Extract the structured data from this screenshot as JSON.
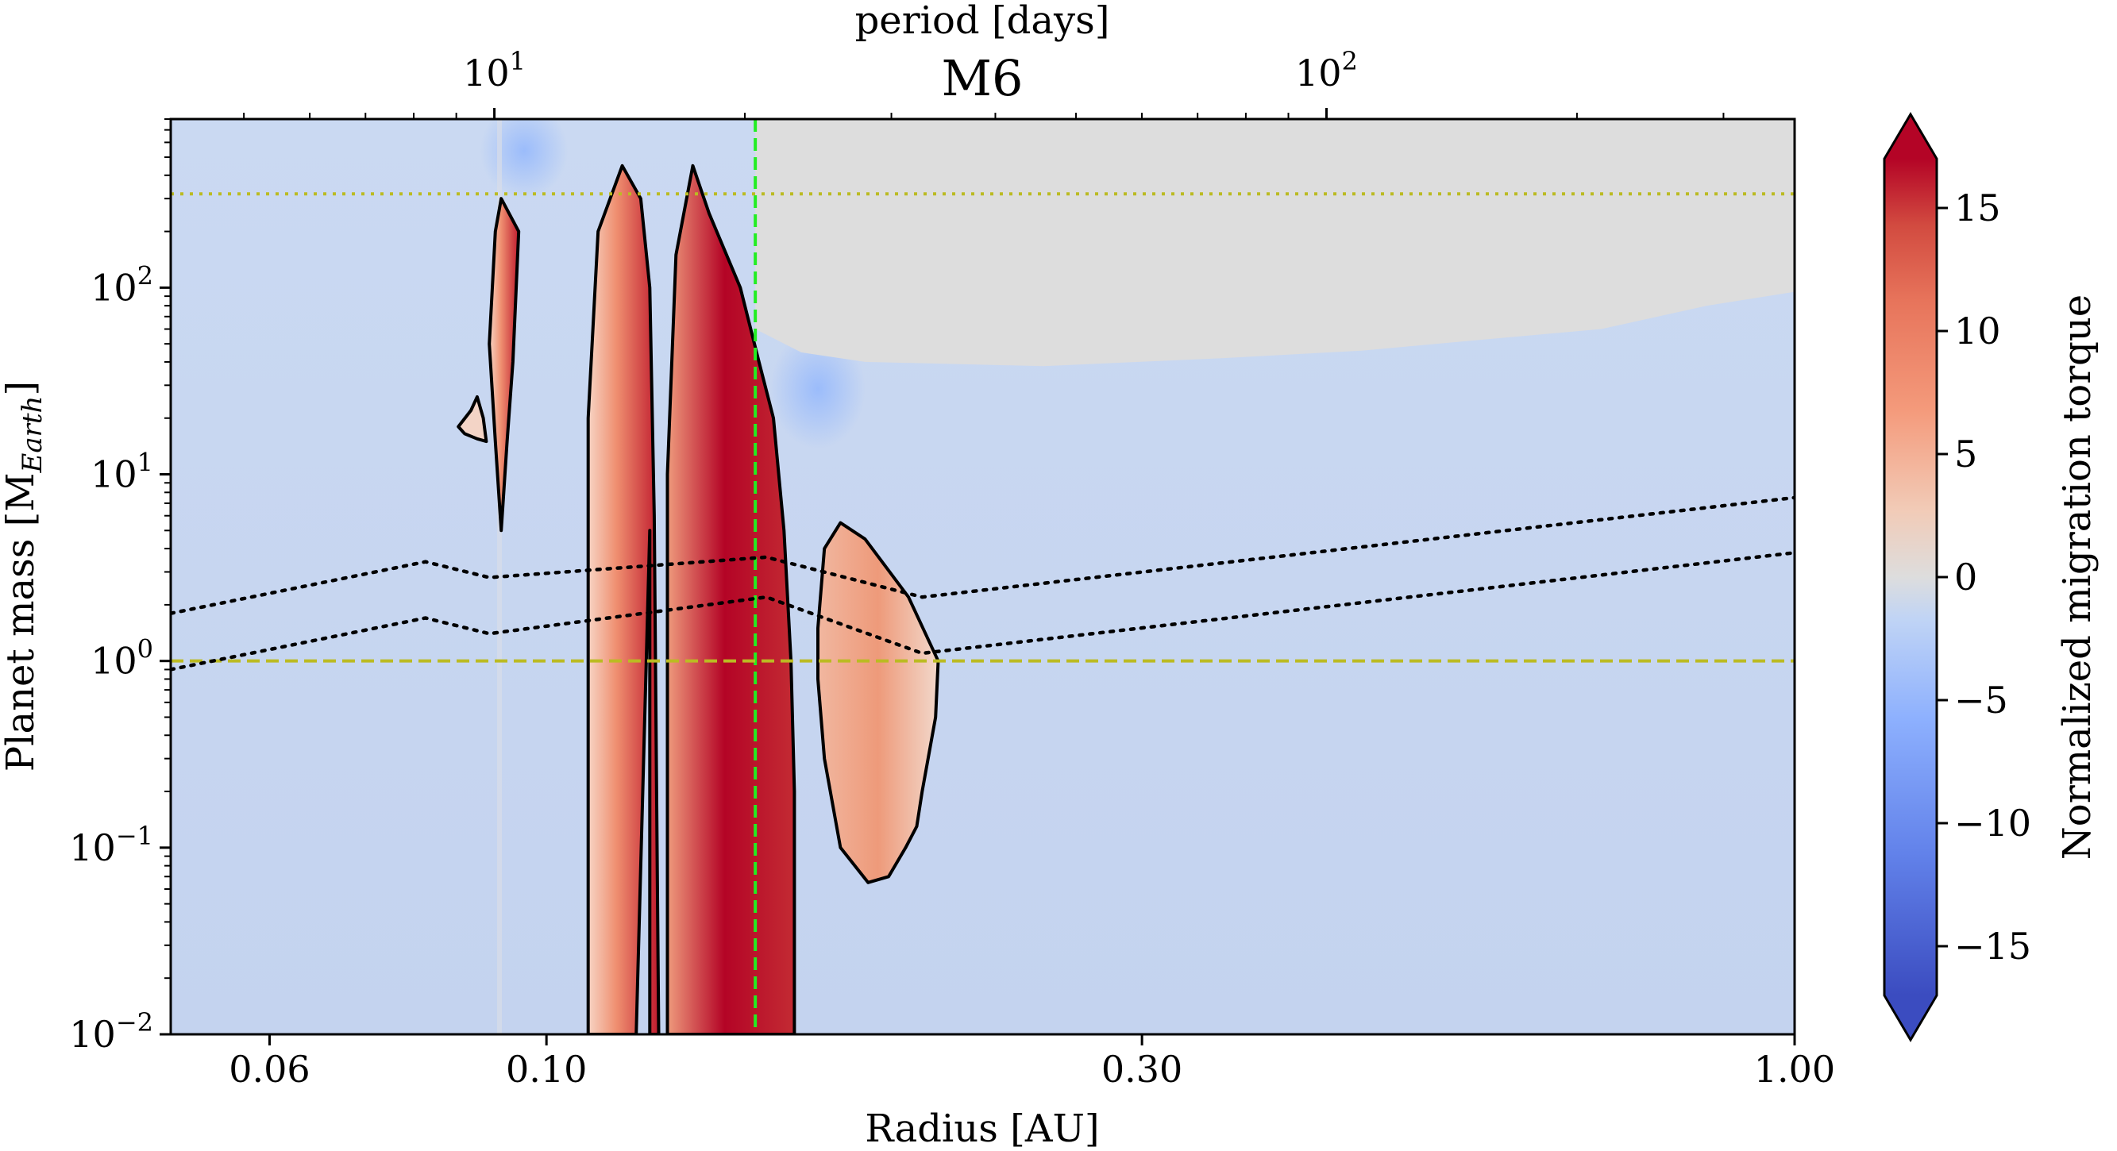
{
  "chart_data": {
    "type": "heatmap",
    "title": "M6",
    "xlabel": "Radius [AU]",
    "ylabel_main": "Planet mass [M",
    "ylabel_sub": "Earth",
    "ylabel_close": "]",
    "top_axis_label": "period [days]",
    "x_scale": "log",
    "y_scale": "log",
    "xlim": [
      0.05,
      1.0
    ],
    "ylim": [
      0.01,
      800
    ],
    "xticks": [
      {
        "value": 0.06,
        "label": "0.06"
      },
      {
        "value": 0.1,
        "label": "0.10"
      },
      {
        "value": 0.3,
        "label": "0.30"
      },
      {
        "value": 1.0,
        "label": "1.00"
      }
    ],
    "yticks": [
      {
        "value": 0.01,
        "base": "10",
        "exp": "−2"
      },
      {
        "value": 0.1,
        "base": "10",
        "exp": "−1"
      },
      {
        "value": 1,
        "base": "10",
        "exp": "0"
      },
      {
        "value": 10,
        "base": "10",
        "exp": "1"
      },
      {
        "value": 100,
        "base": "10",
        "exp": "2"
      }
    ],
    "top_ticks": [
      {
        "value": 10,
        "base": "10",
        "exp": "1"
      },
      {
        "value": 100,
        "base": "10",
        "exp": "2"
      }
    ],
    "colorbar": {
      "label": "Normalized migration torque",
      "range": [
        -17,
        17
      ],
      "extend": "both",
      "ticks": [
        {
          "value": 15,
          "label": "15"
        },
        {
          "value": 10,
          "label": "10"
        },
        {
          "value": 5,
          "label": "5"
        },
        {
          "value": 0,
          "label": "0"
        },
        {
          "value": -5,
          "label": "−5"
        },
        {
          "value": -10,
          "label": "−10"
        },
        {
          "value": -15,
          "label": "−15"
        }
      ],
      "colors": [
        "#3b4cc0",
        "#7b9ff9",
        "#c0d4f5",
        "#dddddd",
        "#f2cbb7",
        "#ee8468",
        "#b40426"
      ]
    },
    "reference_lines": [
      {
        "name": "inner-edge",
        "axis": "x",
        "value": 0.147,
        "style": "dashed",
        "color": "#22ee22"
      },
      {
        "name": "earth-mass",
        "axis": "y",
        "value": 1.0,
        "style": "dashed",
        "color": "#bbbb22"
      },
      {
        "name": "upper-mass",
        "axis": "y",
        "value": 318,
        "style": "dotted",
        "color": "#bbbb22"
      }
    ],
    "dotted_curves": [
      {
        "name": "upper",
        "points": [
          [
            0.05,
            1.8
          ],
          [
            0.08,
            3.4
          ],
          [
            0.09,
            2.8
          ],
          [
            0.15,
            3.6
          ],
          [
            0.2,
            2.2
          ],
          [
            1.0,
            7.5
          ]
        ]
      },
      {
        "name": "lower",
        "points": [
          [
            0.05,
            0.9
          ],
          [
            0.08,
            1.7
          ],
          [
            0.09,
            1.4
          ],
          [
            0.15,
            2.2
          ],
          [
            0.2,
            1.1
          ],
          [
            1.0,
            3.8
          ]
        ]
      }
    ],
    "gap_region": {
      "color": "#dddddd",
      "boundary": [
        [
          0.147,
          800
        ],
        [
          0.147,
          60
        ],
        [
          0.16,
          45
        ],
        [
          0.18,
          40
        ],
        [
          0.25,
          38
        ],
        [
          0.35,
          42
        ],
        [
          0.45,
          46
        ],
        [
          0.55,
          52
        ],
        [
          0.7,
          60
        ],
        [
          0.85,
          80
        ],
        [
          1.0,
          95
        ],
        [
          1.0,
          800
        ]
      ]
    },
    "positive_regions": [
      {
        "name": "thin-spike",
        "boundary": [
          [
            0.092,
            300
          ],
          [
            0.095,
            200
          ],
          [
            0.094,
            40
          ],
          [
            0.093,
            15
          ],
          [
            0.092,
            5
          ],
          [
            0.091,
            15
          ],
          [
            0.09,
            50
          ],
          [
            0.091,
            200
          ]
        ]
      },
      {
        "name": "small-blob",
        "boundary": [
          [
            0.085,
            18
          ],
          [
            0.087,
            22
          ],
          [
            0.088,
            26
          ],
          [
            0.089,
            20
          ],
          [
            0.0895,
            15
          ],
          [
            0.088,
            15.5
          ],
          [
            0.086,
            16.5
          ]
        ]
      },
      {
        "name": "left-lobe",
        "boundary": [
          [
            0.108,
            0.01
          ],
          [
            0.108,
            20
          ],
          [
            0.11,
            200
          ],
          [
            0.115,
            450
          ],
          [
            0.119,
            300
          ],
          [
            0.121,
            100
          ],
          [
            0.122,
            6
          ],
          [
            0.123,
            0.01
          ],
          [
            0.121,
            0.01
          ],
          [
            0.121,
            5
          ],
          [
            0.118,
            0.01
          ]
        ]
      },
      {
        "name": "right-lobe",
        "boundary": [
          [
            0.125,
            0.01
          ],
          [
            0.125,
            10
          ],
          [
            0.127,
            150
          ],
          [
            0.131,
            450
          ],
          [
            0.135,
            250
          ],
          [
            0.143,
            100
          ],
          [
            0.148,
            40
          ],
          [
            0.152,
            20
          ],
          [
            0.155,
            5
          ],
          [
            0.157,
            1
          ],
          [
            0.158,
            0.2
          ],
          [
            0.158,
            0.01
          ]
        ]
      },
      {
        "name": "far-blob",
        "boundary": [
          [
            0.165,
            1.5
          ],
          [
            0.167,
            4
          ],
          [
            0.172,
            5.5
          ],
          [
            0.18,
            4.5
          ],
          [
            0.195,
            2.2
          ],
          [
            0.206,
            1.0
          ],
          [
            0.205,
            0.5
          ],
          [
            0.2,
            0.2
          ],
          [
            0.198,
            0.13
          ],
          [
            0.194,
            0.1
          ],
          [
            0.188,
            0.07
          ],
          [
            0.181,
            0.065
          ],
          [
            0.172,
            0.1
          ],
          [
            0.167,
            0.3
          ],
          [
            0.165,
            0.8
          ]
        ]
      }
    ]
  }
}
